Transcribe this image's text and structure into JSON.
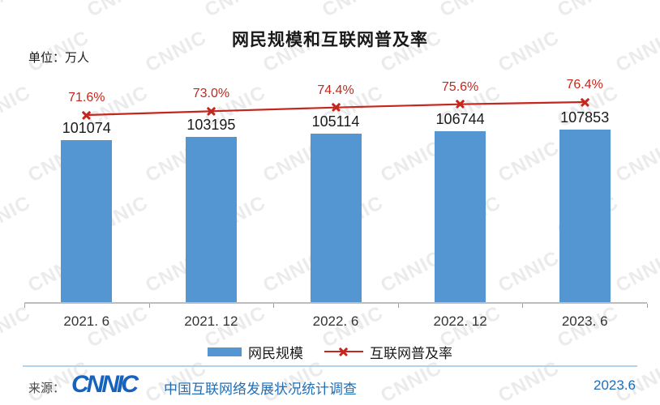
{
  "title": "网民规模和互联网普及率",
  "unit_label": "单位：万人",
  "watermark_text": "CNNIC",
  "colors": {
    "bar": "#5396D2",
    "line": "#C3271D",
    "axis": "#BDBDBD",
    "footer_blue": "#1F6FB8",
    "logo_blue": "#1563BC",
    "divider": "#B3D2EC",
    "value_label": "#1A1A1A",
    "pct_label": "#C3271D"
  },
  "chart_data": {
    "type": "bar",
    "title": "网民规模和互联网普及率",
    "unit": "万人",
    "categories": [
      "2021.6",
      "2021.12",
      "2022.6",
      "2022.12",
      "2023.6"
    ],
    "category_labels": [
      "2021. 6",
      "2021. 12",
      "2022. 6",
      "2022. 12",
      "2023. 6"
    ],
    "series": [
      {
        "name": "网民规模",
        "type": "bar",
        "values": [
          101074,
          103195,
          105114,
          106744,
          107853
        ],
        "labels": [
          "101074",
          "103195",
          "105114",
          "106744",
          "107853"
        ]
      },
      {
        "name": "互联网普及率",
        "type": "line",
        "values": [
          71.6,
          73.0,
          74.4,
          75.6,
          76.4
        ],
        "labels": [
          "71.6%",
          "73.0%",
          "74.4%",
          "75.6%",
          "76.4%"
        ]
      }
    ],
    "ylim": [
      0,
      107853
    ],
    "grid": false,
    "legend_position": "bottom"
  },
  "legend": {
    "items": [
      {
        "label": "网民规模",
        "marker": "bar-swatch"
      },
      {
        "label": "互联网普及率",
        "marker": "line-x-marker"
      }
    ]
  },
  "footer": {
    "source_label": "来源：",
    "logo_text": "CNNIC",
    "source_text": "中国互联网络发展状况统计调查",
    "report_date": "2023.6"
  }
}
